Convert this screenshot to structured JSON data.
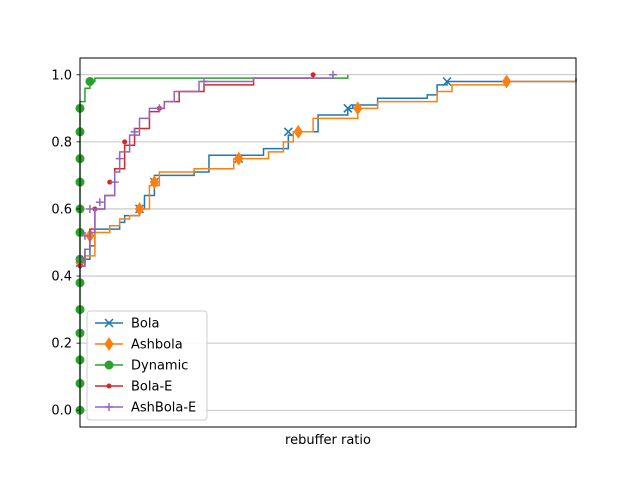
{
  "chart_data": {
    "type": "line",
    "xlabel": "rebuffer ratio",
    "ylabel": "",
    "title": "",
    "xlim": [
      0,
      1
    ],
    "ylim": [
      -0.05,
      1.05
    ],
    "yticks": [
      0.0,
      0.2,
      0.4,
      0.6,
      0.8,
      1.0
    ],
    "ytick_labels": [
      "0.0",
      "0.2",
      "0.4",
      "0.6",
      "0.8",
      "1.0"
    ],
    "grid": "horizontal",
    "legend_position": "lower-left",
    "series": [
      {
        "name": "Bola",
        "color": "#1f77b4",
        "marker": "x",
        "points": [
          [
            0.0,
            0.44
          ],
          [
            0.01,
            0.45
          ],
          [
            0.02,
            0.49
          ],
          [
            0.03,
            0.54
          ],
          [
            0.06,
            0.54
          ],
          [
            0.08,
            0.56
          ],
          [
            0.09,
            0.58
          ],
          [
            0.12,
            0.6
          ],
          [
            0.13,
            0.64
          ],
          [
            0.15,
            0.7
          ],
          [
            0.23,
            0.71
          ],
          [
            0.26,
            0.76
          ],
          [
            0.37,
            0.78
          ],
          [
            0.42,
            0.82
          ],
          [
            0.43,
            0.83
          ],
          [
            0.48,
            0.88
          ],
          [
            0.54,
            0.9
          ],
          [
            0.55,
            0.91
          ],
          [
            0.6,
            0.93
          ],
          [
            0.7,
            0.94
          ],
          [
            0.72,
            0.97
          ],
          [
            0.74,
            0.98
          ],
          [
            1.0,
            0.99
          ]
        ],
        "marker_points": [
          [
            0.0,
            0.44
          ],
          [
            0.12,
            0.6
          ],
          [
            0.15,
            0.68
          ],
          [
            0.32,
            0.75
          ],
          [
            0.42,
            0.83
          ],
          [
            0.54,
            0.9
          ],
          [
            0.74,
            0.98
          ]
        ]
      },
      {
        "name": "Ashbola",
        "color": "#ff7f0e",
        "marker": "diamond",
        "points": [
          [
            0.0,
            0.44
          ],
          [
            0.01,
            0.46
          ],
          [
            0.03,
            0.53
          ],
          [
            0.06,
            0.55
          ],
          [
            0.08,
            0.57
          ],
          [
            0.1,
            0.58
          ],
          [
            0.12,
            0.6
          ],
          [
            0.14,
            0.67
          ],
          [
            0.16,
            0.71
          ],
          [
            0.23,
            0.72
          ],
          [
            0.31,
            0.75
          ],
          [
            0.38,
            0.77
          ],
          [
            0.41,
            0.8
          ],
          [
            0.43,
            0.83
          ],
          [
            0.47,
            0.87
          ],
          [
            0.56,
            0.9
          ],
          [
            0.6,
            0.92
          ],
          [
            0.72,
            0.95
          ],
          [
            0.75,
            0.97
          ],
          [
            0.86,
            0.98
          ],
          [
            1.0,
            0.99
          ]
        ],
        "marker_points": [
          [
            0.0,
            0.44
          ],
          [
            0.02,
            0.52
          ],
          [
            0.12,
            0.6
          ],
          [
            0.15,
            0.68
          ],
          [
            0.32,
            0.75
          ],
          [
            0.44,
            0.83
          ],
          [
            0.56,
            0.9
          ],
          [
            0.86,
            0.98
          ]
        ]
      },
      {
        "name": "Dynamic",
        "color": "#2ca02c",
        "marker": "circle",
        "points": [
          [
            0.0,
            0.0
          ],
          [
            0.0,
            0.92
          ],
          [
            0.01,
            0.96
          ],
          [
            0.02,
            0.98
          ],
          [
            0.03,
            0.99
          ],
          [
            0.54,
            1.0
          ]
        ],
        "marker_points": [
          [
            0.0,
            0.0
          ],
          [
            0.0,
            0.08
          ],
          [
            0.0,
            0.15
          ],
          [
            0.0,
            0.23
          ],
          [
            0.0,
            0.3
          ],
          [
            0.0,
            0.38
          ],
          [
            0.0,
            0.45
          ],
          [
            0.0,
            0.53
          ],
          [
            0.0,
            0.6
          ],
          [
            0.0,
            0.68
          ],
          [
            0.0,
            0.75
          ],
          [
            0.0,
            0.83
          ],
          [
            0.0,
            0.9
          ],
          [
            0.02,
            0.98
          ]
        ]
      },
      {
        "name": "Bola-E",
        "color": "#d62728",
        "marker": "point",
        "points": [
          [
            0.0,
            0.43
          ],
          [
            0.01,
            0.48
          ],
          [
            0.02,
            0.54
          ],
          [
            0.03,
            0.6
          ],
          [
            0.05,
            0.64
          ],
          [
            0.07,
            0.72
          ],
          [
            0.09,
            0.79
          ],
          [
            0.11,
            0.84
          ],
          [
            0.14,
            0.89
          ],
          [
            0.16,
            0.9
          ],
          [
            0.17,
            0.92
          ],
          [
            0.2,
            0.95
          ],
          [
            0.25,
            0.97
          ],
          [
            0.35,
            0.99
          ],
          [
            0.47,
            1.0
          ]
        ],
        "marker_points": [
          [
            0.0,
            0.43
          ],
          [
            0.03,
            0.6
          ],
          [
            0.06,
            0.68
          ],
          [
            0.09,
            0.8
          ],
          [
            0.16,
            0.9
          ],
          [
            0.47,
            1.0
          ]
        ]
      },
      {
        "name": "AshBola-E",
        "color": "#9467bd",
        "marker": "plus",
        "points": [
          [
            0.0,
            0.43
          ],
          [
            0.01,
            0.48
          ],
          [
            0.02,
            0.53
          ],
          [
            0.03,
            0.6
          ],
          [
            0.05,
            0.64
          ],
          [
            0.07,
            0.71
          ],
          [
            0.08,
            0.77
          ],
          [
            0.1,
            0.82
          ],
          [
            0.12,
            0.87
          ],
          [
            0.14,
            0.9
          ],
          [
            0.17,
            0.92
          ],
          [
            0.19,
            0.95
          ],
          [
            0.24,
            0.98
          ],
          [
            0.35,
            0.99
          ],
          [
            0.51,
            1.0
          ]
        ],
        "marker_points": [
          [
            0.0,
            0.45
          ],
          [
            0.01,
            0.52
          ],
          [
            0.02,
            0.6
          ],
          [
            0.04,
            0.62
          ],
          [
            0.07,
            0.68
          ],
          [
            0.08,
            0.75
          ],
          [
            0.11,
            0.83
          ],
          [
            0.16,
            0.9
          ],
          [
            0.25,
            0.98
          ],
          [
            0.51,
            1.0
          ]
        ]
      }
    ]
  }
}
